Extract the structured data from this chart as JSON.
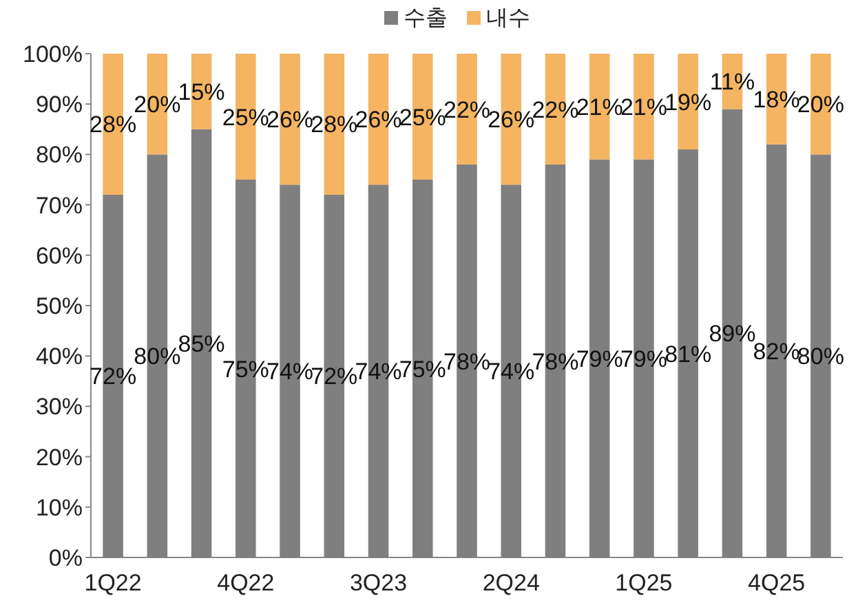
{
  "chart_data": {
    "type": "bar",
    "stacked": true,
    "categories": [
      "1Q22",
      null,
      null,
      "4Q22",
      null,
      null,
      "3Q23",
      null,
      null,
      "2Q24",
      null,
      null,
      "1Q25",
      null,
      null,
      "4Q25",
      null
    ],
    "series": [
      {
        "name": "수출",
        "color": "#7f7f7f",
        "values": [
          72,
          80,
          85,
          75,
          74,
          72,
          74,
          75,
          78,
          74,
          78,
          79,
          79,
          81,
          89,
          82,
          80
        ],
        "value_labels": [
          "72%",
          "80%",
          "85%",
          "75%",
          "74%",
          "72%",
          "74%",
          "75%",
          "78%",
          "74%",
          "78%",
          "79%",
          "79%",
          "81%",
          "89%",
          "82%",
          "80%"
        ]
      },
      {
        "name": "내수",
        "color": "#f4b462",
        "values": [
          28,
          20,
          15,
          25,
          26,
          28,
          26,
          25,
          22,
          26,
          22,
          21,
          21,
          19,
          11,
          18,
          20
        ],
        "value_labels": [
          "28%",
          "20%",
          "15%",
          "25%",
          "26%",
          "28%",
          "26%",
          "25%",
          "22%",
          "26%",
          "22%",
          "21%",
          "21%",
          "19%",
          "11%",
          "18%",
          "20%"
        ]
      }
    ],
    "ylim": [
      0,
      100
    ],
    "yticks": [
      {
        "value": 0,
        "label": "0%"
      },
      {
        "value": 10,
        "label": "10%"
      },
      {
        "value": 20,
        "label": "20%"
      },
      {
        "value": 30,
        "label": "30%"
      },
      {
        "value": 40,
        "label": "40%"
      },
      {
        "value": 50,
        "label": "50%"
      },
      {
        "value": 60,
        "label": "60%"
      },
      {
        "value": 70,
        "label": "70%"
      },
      {
        "value": 80,
        "label": "80%"
      },
      {
        "value": 90,
        "label": "90%"
      },
      {
        "value": 100,
        "label": "100%"
      }
    ],
    "grid": false,
    "legend": "top"
  }
}
